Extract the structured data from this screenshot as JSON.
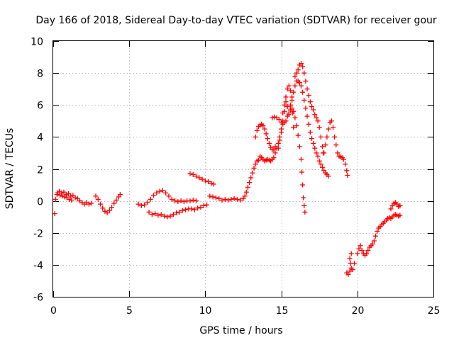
{
  "chart_data": {
    "type": "scatter",
    "title": "Day 166 of 2018, Sidereal Day-to-day VTEC variation (SDTVAR) for receiver gour",
    "xlabel": "GPS time / hours",
    "ylabel": "SDTVAR / TECUs",
    "xlim": [
      0,
      25
    ],
    "ylim": [
      -6,
      10
    ],
    "xticks": [
      0,
      5,
      10,
      15,
      20,
      25
    ],
    "yticks": [
      -6,
      -4,
      -2,
      0,
      2,
      4,
      6,
      8,
      10
    ],
    "xtick_labels": [
      "0",
      "5",
      "10",
      "15",
      "20",
      "25"
    ],
    "ytick_labels": [
      "-6",
      "-4",
      "-2",
      "0",
      "2",
      "4",
      "6",
      "8",
      "10"
    ],
    "grid": true,
    "marker": "+",
    "color": "#ff0000",
    "series": [
      {
        "name": "SDTVAR",
        "points": [
          [
            0.1,
            -0.8
          ],
          [
            0.15,
            0.1
          ],
          [
            0.25,
            0.4
          ],
          [
            0.4,
            0.6
          ],
          [
            0.55,
            0.5
          ],
          [
            0.7,
            0.55
          ],
          [
            0.85,
            0.4
          ],
          [
            1.0,
            0.45
          ],
          [
            1.15,
            0.3
          ],
          [
            1.3,
            0.35
          ],
          [
            1.45,
            0.2
          ],
          [
            1.6,
            0.15
          ],
          [
            1.75,
            0.0
          ],
          [
            1.9,
            -0.1
          ],
          [
            2.05,
            -0.2
          ],
          [
            2.2,
            -0.1
          ],
          [
            2.35,
            -0.2
          ],
          [
            2.5,
            -0.15
          ],
          [
            0.3,
            0.5
          ],
          [
            0.45,
            0.35
          ],
          [
            0.6,
            0.3
          ],
          [
            0.75,
            0.25
          ],
          [
            0.9,
            0.2
          ],
          [
            1.05,
            0.1
          ],
          [
            1.2,
            0.05
          ],
          [
            2.8,
            0.3
          ],
          [
            2.95,
            0.1
          ],
          [
            3.1,
            -0.2
          ],
          [
            3.25,
            -0.45
          ],
          [
            3.4,
            -0.65
          ],
          [
            3.55,
            -0.75
          ],
          [
            3.7,
            -0.6
          ],
          [
            3.85,
            -0.4
          ],
          [
            4.0,
            -0.15
          ],
          [
            4.15,
            0.05
          ],
          [
            4.3,
            0.25
          ],
          [
            4.4,
            0.4
          ],
          [
            5.6,
            -0.2
          ],
          [
            5.8,
            -0.3
          ],
          [
            6.0,
            -0.25
          ],
          [
            6.2,
            -0.1
          ],
          [
            6.4,
            0.1
          ],
          [
            6.6,
            0.35
          ],
          [
            6.8,
            0.5
          ],
          [
            7.0,
            0.6
          ],
          [
            7.2,
            0.65
          ],
          [
            7.4,
            0.5
          ],
          [
            7.6,
            0.3
          ],
          [
            7.8,
            0.1
          ],
          [
            8.0,
            0.0
          ],
          [
            8.2,
            -0.05
          ],
          [
            8.4,
            0.0
          ],
          [
            8.6,
            -0.05
          ],
          [
            8.8,
            0.0
          ],
          [
            9.0,
            0.0
          ],
          [
            9.2,
            0.05
          ],
          [
            9.4,
            0.0
          ],
          [
            6.3,
            -0.7
          ],
          [
            6.5,
            -0.85
          ],
          [
            6.7,
            -0.8
          ],
          [
            6.9,
            -0.9
          ],
          [
            7.1,
            -0.85
          ],
          [
            7.3,
            -0.95
          ],
          [
            7.5,
            -1.0
          ],
          [
            7.7,
            -0.95
          ],
          [
            7.9,
            -0.85
          ],
          [
            8.1,
            -0.75
          ],
          [
            8.3,
            -0.7
          ],
          [
            8.5,
            -0.6
          ],
          [
            8.7,
            -0.55
          ],
          [
            8.9,
            -0.5
          ],
          [
            9.1,
            -0.5
          ],
          [
            9.3,
            -0.55
          ],
          [
            9.5,
            -0.45
          ],
          [
            9.7,
            -0.4
          ],
          [
            9.9,
            -0.3
          ],
          [
            10.1,
            -0.25
          ],
          [
            9.0,
            1.7
          ],
          [
            9.2,
            1.65
          ],
          [
            9.4,
            1.55
          ],
          [
            9.6,
            1.45
          ],
          [
            9.8,
            1.35
          ],
          [
            10.0,
            1.25
          ],
          [
            10.2,
            1.2
          ],
          [
            10.4,
            1.1
          ],
          [
            10.55,
            1.05
          ],
          [
            10.3,
            0.3
          ],
          [
            10.5,
            0.25
          ],
          [
            10.7,
            0.2
          ],
          [
            10.9,
            0.15
          ],
          [
            11.1,
            0.05
          ],
          [
            11.3,
            0.1
          ],
          [
            11.5,
            0.05
          ],
          [
            11.7,
            0.1
          ],
          [
            11.9,
            0.15
          ],
          [
            12.1,
            0.1
          ],
          [
            12.3,
            0.05
          ],
          [
            12.5,
            0.15
          ],
          [
            12.6,
            0.3
          ],
          [
            12.7,
            0.55
          ],
          [
            12.8,
            0.85
          ],
          [
            12.9,
            1.15
          ],
          [
            13.0,
            1.45
          ],
          [
            13.1,
            1.75
          ],
          [
            13.2,
            2.05
          ],
          [
            13.3,
            2.3
          ],
          [
            13.4,
            2.5
          ],
          [
            13.5,
            2.55
          ],
          [
            13.6,
            2.8
          ],
          [
            13.7,
            2.7
          ],
          [
            13.8,
            2.6
          ],
          [
            13.9,
            2.5
          ],
          [
            14.0,
            2.55
          ],
          [
            14.1,
            2.6
          ],
          [
            14.2,
            2.55
          ],
          [
            14.3,
            2.5
          ],
          [
            14.4,
            2.6
          ],
          [
            14.5,
            2.7
          ],
          [
            14.6,
            3.0
          ],
          [
            14.7,
            3.3
          ],
          [
            14.8,
            3.6
          ],
          [
            14.9,
            4.0
          ],
          [
            15.0,
            4.5
          ],
          [
            15.1,
            4.8
          ],
          [
            15.2,
            4.9
          ],
          [
            15.3,
            5.0
          ],
          [
            13.3,
            4.0
          ],
          [
            13.4,
            4.4
          ],
          [
            13.5,
            4.65
          ],
          [
            13.6,
            4.75
          ],
          [
            13.7,
            4.8
          ],
          [
            13.8,
            4.7
          ],
          [
            13.9,
            4.5
          ],
          [
            14.0,
            4.2
          ],
          [
            14.1,
            3.9
          ],
          [
            14.2,
            3.6
          ],
          [
            14.3,
            3.35
          ],
          [
            14.4,
            3.2
          ],
          [
            14.5,
            3.2
          ],
          [
            14.6,
            3.4
          ],
          [
            14.4,
            5.2
          ],
          [
            14.55,
            5.25
          ],
          [
            14.7,
            5.2
          ],
          [
            14.85,
            5.1
          ],
          [
            15.0,
            4.9
          ],
          [
            15.1,
            5.5
          ],
          [
            15.2,
            6.0
          ],
          [
            15.3,
            6.2
          ],
          [
            15.4,
            5.9
          ],
          [
            15.5,
            5.4
          ],
          [
            15.6,
            6.0
          ],
          [
            15.7,
            6.3
          ],
          [
            15.75,
            5.5
          ],
          [
            15.8,
            4.6
          ],
          [
            14.8,
            3.3
          ],
          [
            14.9,
            3.8
          ],
          [
            15.0,
            4.3
          ],
          [
            15.1,
            5.0
          ],
          [
            15.2,
            5.6
          ],
          [
            15.3,
            6.5
          ],
          [
            15.4,
            7.0
          ],
          [
            15.5,
            7.2
          ],
          [
            15.6,
            6.9
          ],
          [
            15.7,
            6.5
          ],
          [
            15.8,
            6.8
          ],
          [
            15.9,
            7.2
          ],
          [
            16.0,
            7.5
          ],
          [
            16.1,
            7.5
          ],
          [
            16.2,
            7.4
          ],
          [
            16.3,
            7.2
          ],
          [
            16.4,
            6.8
          ],
          [
            16.5,
            6.3
          ],
          [
            16.6,
            5.8
          ],
          [
            16.7,
            5.3
          ],
          [
            16.8,
            4.8
          ],
          [
            16.9,
            4.3
          ],
          [
            17.0,
            3.9
          ],
          [
            17.1,
            3.6
          ],
          [
            17.2,
            3.3
          ],
          [
            17.3,
            3.0
          ],
          [
            17.4,
            2.8
          ],
          [
            17.5,
            2.5
          ],
          [
            17.6,
            2.3
          ],
          [
            17.7,
            2.1
          ],
          [
            17.8,
            1.9
          ],
          [
            17.9,
            1.75
          ],
          [
            18.0,
            1.65
          ],
          [
            18.1,
            1.55
          ],
          [
            15.4,
            5.3
          ],
          [
            15.5,
            5.5
          ],
          [
            15.6,
            5.7
          ],
          [
            15.7,
            5.8
          ],
          [
            15.8,
            5.6
          ],
          [
            15.9,
            5.2
          ],
          [
            16.0,
            4.7
          ],
          [
            16.1,
            4.1
          ],
          [
            16.2,
            3.4
          ],
          [
            16.3,
            2.6
          ],
          [
            16.35,
            1.8
          ],
          [
            16.4,
            1.0
          ],
          [
            16.45,
            0.2
          ],
          [
            16.5,
            -0.3
          ],
          [
            16.55,
            -0.7
          ],
          [
            15.9,
            7.8
          ],
          [
            16.0,
            8.0
          ],
          [
            16.1,
            8.2
          ],
          [
            16.2,
            8.5
          ],
          [
            16.3,
            8.6
          ],
          [
            16.4,
            8.4
          ],
          [
            16.5,
            8.0
          ],
          [
            16.6,
            7.5
          ],
          [
            16.7,
            7.0
          ],
          [
            16.8,
            6.6
          ],
          [
            16.9,
            6.2
          ],
          [
            17.0,
            5.9
          ],
          [
            17.1,
            5.7
          ],
          [
            17.2,
            5.4
          ],
          [
            17.3,
            5.2
          ],
          [
            17.4,
            5.0
          ],
          [
            17.5,
            4.6
          ],
          [
            17.6,
            4.0
          ],
          [
            17.7,
            3.4
          ],
          [
            17.75,
            3.0
          ],
          [
            17.8,
            3.0
          ],
          [
            17.9,
            3.5
          ],
          [
            18.0,
            4.0
          ],
          [
            18.1,
            4.5
          ],
          [
            18.2,
            4.9
          ],
          [
            18.3,
            5.0
          ],
          [
            18.4,
            4.6
          ],
          [
            18.5,
            4.0
          ],
          [
            18.6,
            3.5
          ],
          [
            18.7,
            3.0
          ],
          [
            18.8,
            2.8
          ],
          [
            18.9,
            2.75
          ],
          [
            19.0,
            2.7
          ],
          [
            19.1,
            2.6
          ],
          [
            19.2,
            2.3
          ],
          [
            19.3,
            1.9
          ],
          [
            19.35,
            1.6
          ],
          [
            19.3,
            -4.5
          ],
          [
            19.4,
            -4.6
          ],
          [
            19.5,
            -4.4
          ],
          [
            19.6,
            -4.2
          ],
          [
            19.7,
            -4.3
          ],
          [
            19.8,
            -3.9
          ],
          [
            19.5,
            -3.6
          ],
          [
            19.6,
            -3.3
          ],
          [
            19.55,
            -3.9
          ],
          [
            20.0,
            -3.3
          ],
          [
            20.1,
            -3.0
          ],
          [
            20.2,
            -2.8
          ],
          [
            20.3,
            -3.1
          ],
          [
            20.4,
            -3.3
          ],
          [
            20.5,
            -3.4
          ],
          [
            20.6,
            -3.3
          ],
          [
            20.7,
            -3.1
          ],
          [
            20.8,
            -2.9
          ],
          [
            20.9,
            -2.8
          ],
          [
            21.0,
            -2.7
          ],
          [
            21.1,
            -2.5
          ],
          [
            21.2,
            -2.2
          ],
          [
            21.3,
            -1.9
          ],
          [
            21.4,
            -1.7
          ],
          [
            21.5,
            -1.6
          ],
          [
            21.6,
            -1.5
          ],
          [
            21.7,
            -1.4
          ],
          [
            21.8,
            -1.3
          ],
          [
            21.9,
            -1.2
          ],
          [
            22.0,
            -1.1
          ],
          [
            22.1,
            -1.05
          ],
          [
            22.2,
            -1.1
          ],
          [
            22.3,
            -1.0
          ],
          [
            22.4,
            -0.9
          ],
          [
            22.5,
            -0.85
          ],
          [
            22.6,
            -0.9
          ],
          [
            22.7,
            -0.95
          ],
          [
            22.8,
            -0.9
          ],
          [
            22.2,
            -0.5
          ],
          [
            22.3,
            -0.3
          ],
          [
            22.4,
            -0.15
          ],
          [
            22.5,
            -0.1
          ],
          [
            22.6,
            -0.2
          ],
          [
            22.7,
            -0.35
          ],
          [
            22.8,
            -0.3
          ]
        ]
      }
    ]
  }
}
